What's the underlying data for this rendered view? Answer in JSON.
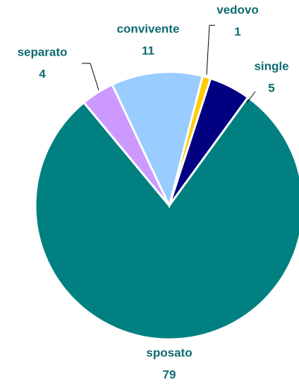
{
  "chart_data": {
    "type": "pie",
    "categories": [
      "vedovo",
      "single",
      "sposato",
      "separato",
      "convivente"
    ],
    "values": [
      1,
      5,
      79,
      4,
      11
    ],
    "colors": [
      "#FFCC00",
      "#000080",
      "#008080",
      "#CC99FF",
      "#99CCFF"
    ]
  }
}
